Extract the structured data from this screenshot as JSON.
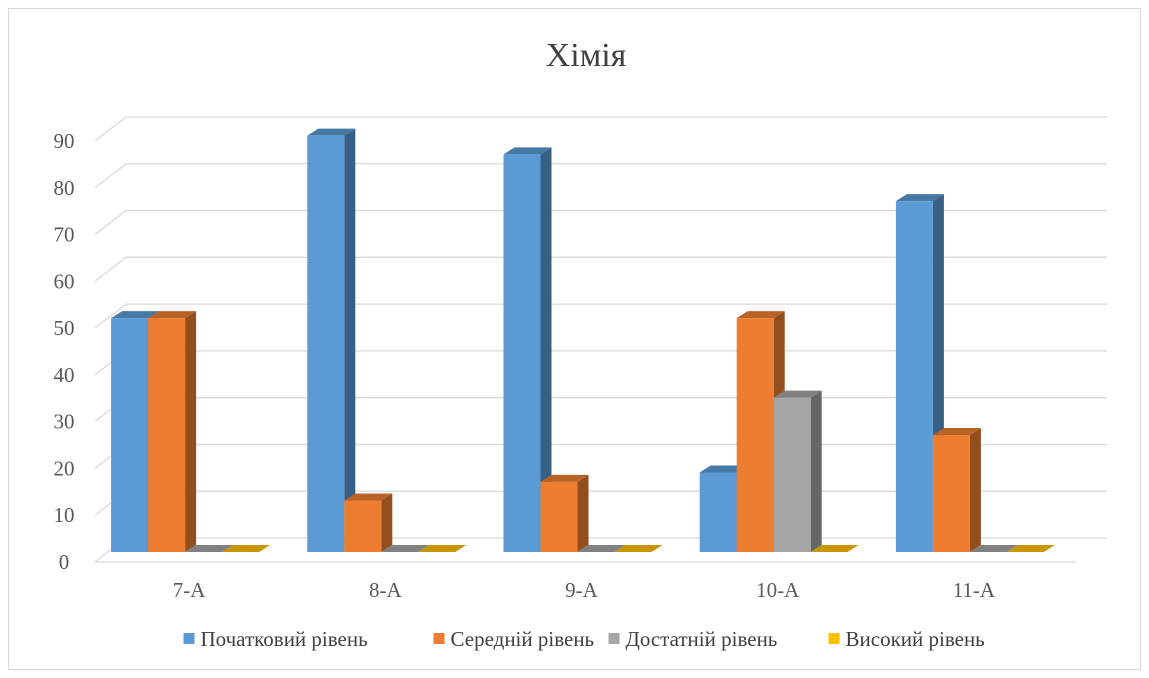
{
  "chart_data": {
    "type": "bar",
    "title": "Хімія",
    "categories": [
      "7-А",
      "8-А",
      "9-А",
      "10-А",
      "11-А"
    ],
    "series": [
      {
        "name": "Початковий рівень",
        "color": "#5B9BD5",
        "values": [
          50,
          89,
          85,
          17,
          75
        ]
      },
      {
        "name": "Середній рівень",
        "color": "#ED7D31",
        "values": [
          50,
          11,
          15,
          50,
          25
        ]
      },
      {
        "name": "Достатній рівень",
        "color": "#A5A5A5",
        "values": [
          0,
          0,
          0,
          33,
          0
        ]
      },
      {
        "name": "Високий рівень",
        "color": "#FFC000",
        "values": [
          0,
          0,
          0,
          0,
          0
        ]
      }
    ],
    "ylim": [
      0,
      90
    ],
    "yticks": [
      0,
      10,
      20,
      30,
      40,
      50,
      60,
      70,
      80,
      90
    ],
    "grid": true,
    "legend": "bottom",
    "style": "3d-clustered-column"
  }
}
